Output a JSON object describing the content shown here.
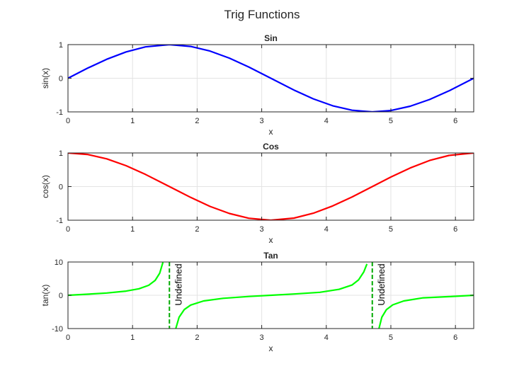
{
  "figure": {
    "title": "Trig Functions"
  },
  "chart_data": [
    {
      "type": "line",
      "title": "Sin",
      "xlabel": "x",
      "ylabel": "sin(x)",
      "xlim": [
        0,
        6.2832
      ],
      "ylim": [
        -1,
        1
      ],
      "xticks": [
        0,
        1,
        2,
        3,
        4,
        5,
        6
      ],
      "yticks": [
        -1,
        0,
        1
      ],
      "grid": true,
      "series": [
        {
          "color": "#0000ff",
          "x": [
            0,
            0.3,
            0.6,
            0.9,
            1.2,
            1.5708,
            1.9,
            2.2,
            2.5,
            2.8,
            3.1416,
            3.5,
            3.8,
            4.1,
            4.4,
            4.7124,
            5.0,
            5.3,
            5.6,
            5.9,
            6.2832
          ],
          "y": [
            0,
            0.296,
            0.565,
            0.783,
            0.932,
            1,
            0.946,
            0.808,
            0.598,
            0.335,
            0,
            -0.351,
            -0.612,
            -0.818,
            -0.952,
            -1,
            -0.959,
            -0.832,
            -0.631,
            -0.374,
            0
          ]
        }
      ]
    },
    {
      "type": "line",
      "title": "Cos",
      "xlabel": "x",
      "ylabel": "cos(x)",
      "xlim": [
        0,
        6.2832
      ],
      "ylim": [
        -1,
        1
      ],
      "xticks": [
        0,
        1,
        2,
        3,
        4,
        5,
        6
      ],
      "yticks": [
        -1,
        0,
        1
      ],
      "grid": true,
      "series": [
        {
          "color": "#ff0000",
          "x": [
            0,
            0.3,
            0.6,
            0.9,
            1.2,
            1.5708,
            1.9,
            2.2,
            2.5,
            2.8,
            3.1416,
            3.5,
            3.8,
            4.1,
            4.4,
            4.7124,
            5.0,
            5.3,
            5.6,
            5.9,
            6.2832
          ],
          "y": [
            1,
            0.955,
            0.825,
            0.622,
            0.362,
            0,
            -0.323,
            -0.589,
            -0.801,
            -0.942,
            -1,
            -0.936,
            -0.791,
            -0.575,
            -0.307,
            0,
            0.284,
            0.554,
            0.776,
            0.927,
            1
          ]
        }
      ]
    },
    {
      "type": "line",
      "title": "Tan",
      "xlabel": "x",
      "ylabel": "tan(x)",
      "xlim": [
        0,
        6.2832
      ],
      "ylim": [
        -10,
        10
      ],
      "xticks": [
        0,
        1,
        2,
        3,
        4,
        5,
        6
      ],
      "yticks": [
        -10,
        0,
        10
      ],
      "grid": true,
      "series": [
        {
          "color": "#00ff00",
          "segments": [
            {
              "x": [
                0,
                0.3,
                0.6,
                0.9,
                1.1,
                1.25,
                1.35,
                1.42,
                1.47
              ],
              "y": [
                0,
                0.309,
                0.684,
                1.26,
                1.96,
                3.01,
                4.46,
                6.61,
                9.89
              ]
            },
            {
              "x": [
                1.67,
                1.72,
                1.8,
                1.9,
                2.1,
                2.4,
                2.8,
                3.1416,
                3.5,
                3.9,
                4.2,
                4.4,
                4.5,
                4.58,
                4.63
              ],
              "y": [
                -9.96,
                -6.6,
                -4.29,
                -2.93,
                -1.71,
                -0.916,
                -0.356,
                0,
                0.375,
                0.895,
                1.78,
                3.1,
                4.64,
                7.0,
                9.4
              ]
            },
            {
              "x": [
                4.81,
                4.86,
                4.93,
                5.03,
                5.2,
                5.5,
                5.9,
                6.2832
              ],
              "y": [
                -10.4,
                -6.6,
                -4.35,
                -2.88,
                -1.7,
                -0.772,
                -0.404,
                0
              ]
            }
          ]
        }
      ],
      "asymptotes": [
        {
          "x": 1.5708,
          "color": "#00aa00",
          "label": "Undefined"
        },
        {
          "x": 4.7124,
          "color": "#00aa00",
          "label": "Undefined"
        }
      ]
    }
  ]
}
